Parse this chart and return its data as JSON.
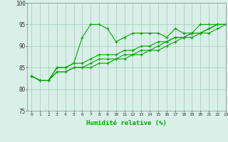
{
  "title": "",
  "xlabel": "Humidité relative (%)",
  "ylabel": "",
  "xlim": [
    -0.5,
    23
  ],
  "ylim": [
    75,
    100
  ],
  "yticks": [
    75,
    80,
    85,
    90,
    95,
    100
  ],
  "xticks": [
    0,
    1,
    2,
    3,
    4,
    5,
    6,
    7,
    8,
    9,
    10,
    11,
    12,
    13,
    14,
    15,
    16,
    17,
    18,
    19,
    20,
    21,
    22,
    23
  ],
  "background_color": "#d8f0e8",
  "grid_color": "#aacfbe",
  "line_color": "#00aa00",
  "lines": [
    [
      83,
      82,
      82,
      85,
      85,
      86,
      92,
      95,
      95,
      94,
      91,
      92,
      93,
      93,
      93,
      93,
      92,
      94,
      93,
      93,
      95,
      95,
      95,
      95
    ],
    [
      83,
      82,
      82,
      85,
      85,
      86,
      86,
      87,
      88,
      88,
      88,
      89,
      89,
      90,
      90,
      91,
      91,
      92,
      92,
      93,
      93,
      94,
      95,
      95
    ],
    [
      83,
      82,
      82,
      84,
      84,
      85,
      85,
      86,
      87,
      87,
      87,
      88,
      88,
      89,
      89,
      90,
      91,
      92,
      92,
      93,
      93,
      94,
      95,
      95
    ],
    [
      83,
      82,
      82,
      84,
      84,
      85,
      85,
      85,
      86,
      86,
      87,
      87,
      88,
      88,
      89,
      89,
      90,
      91,
      92,
      92,
      93,
      93,
      94,
      95
    ]
  ],
  "figsize": [
    3.2,
    2.0
  ],
  "dpi": 100
}
